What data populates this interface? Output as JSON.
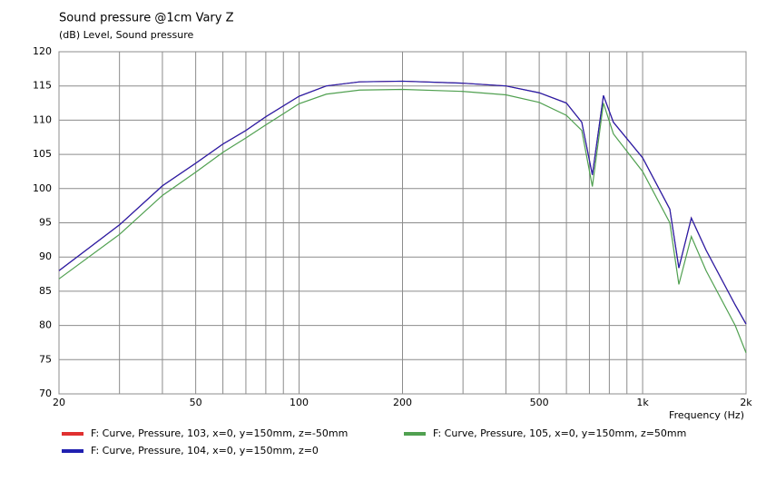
{
  "chart_data": {
    "type": "line",
    "title": "Sound pressure @1cm Vary Z",
    "subtitle": "(dB)  Level, Sound pressure",
    "x_label": "Frequency  (Hz)",
    "x_log": true,
    "grid": true,
    "xlim": [
      20,
      2000
    ],
    "xticks": [
      20,
      50,
      100,
      200,
      500,
      {
        "value": 1000,
        "label": "1k"
      },
      {
        "value": 2000,
        "label": "2k"
      }
    ],
    "ylim": [
      70,
      120
    ],
    "yticks": [
      70,
      75,
      80,
      85,
      90,
      95,
      100,
      105,
      110,
      115,
      120
    ],
    "x": [
      20,
      30,
      40,
      50,
      60,
      70,
      80,
      100,
      120,
      150,
      200,
      300,
      400,
      500,
      600,
      665,
      714,
      769,
      822,
      1000,
      1200,
      1275,
      1386,
      1530,
      1860,
      2000
    ],
    "series": [
      {
        "name": "F: Curve, Pressure, 103, x=0, y=150mm, z=-50mm",
        "color": "#e03030",
        "values": [
          88,
          94.7,
          100.4,
          103.7,
          106.5,
          108.5,
          110.5,
          113.5,
          115,
          115.6,
          115.7,
          115.4,
          115,
          114,
          112.5,
          109.7,
          102,
          113.6,
          109.7,
          104.5,
          97,
          88.4,
          95.7,
          91,
          83,
          80.2
        ]
      },
      {
        "name": "F: Curve, Pressure, 104, x=0, y=150mm, z=0",
        "color": "#2020b0",
        "values": [
          88,
          94.7,
          100.4,
          103.7,
          106.5,
          108.5,
          110.5,
          113.5,
          115,
          115.6,
          115.7,
          115.4,
          115,
          114,
          112.5,
          109.7,
          102,
          113.6,
          109.7,
          104.5,
          97,
          88.4,
          95.7,
          91,
          83,
          80.2
        ]
      },
      {
        "name": "F: Curve, Pressure, 105, x=0, y=150mm, z=50mm",
        "color": "#50a050",
        "values": [
          86.8,
          93.3,
          99,
          102.4,
          105.3,
          107.4,
          109.3,
          112.4,
          113.8,
          114.4,
          114.5,
          114.2,
          113.7,
          112.6,
          110.7,
          108.5,
          100.3,
          112.5,
          108,
          102.5,
          95,
          86,
          93,
          88,
          80,
          76
        ]
      }
    ]
  }
}
